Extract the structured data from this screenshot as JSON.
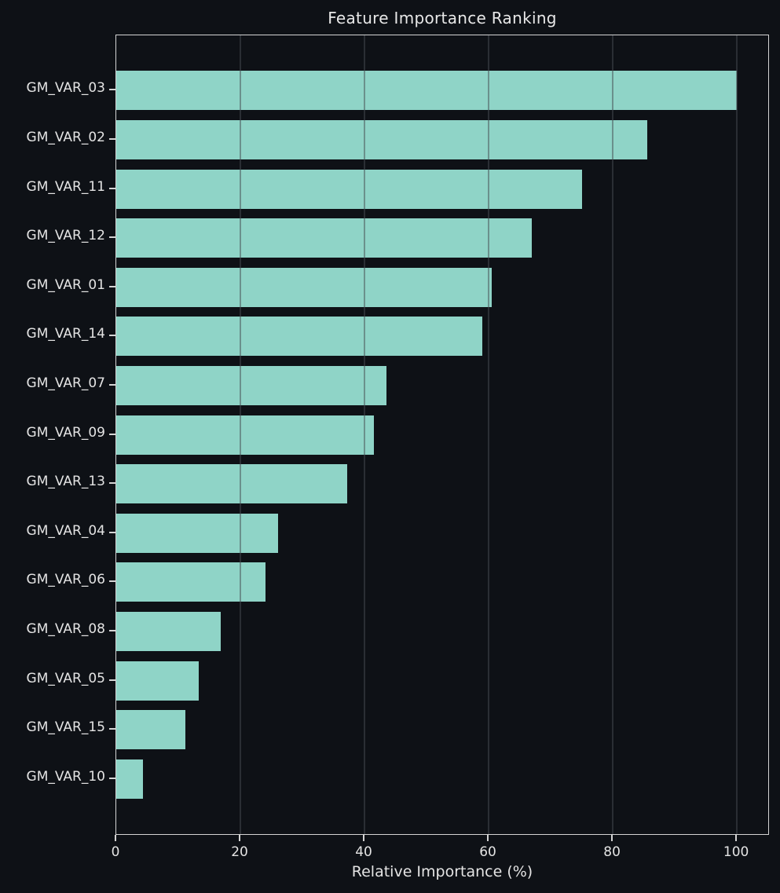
{
  "chart_data": {
    "type": "bar",
    "orientation": "horizontal",
    "title": "Feature Importance Ranking",
    "xlabel": "Relative Importance (%)",
    "ylabel": "",
    "categories": [
      "GM_VAR_03",
      "GM_VAR_02",
      "GM_VAR_11",
      "GM_VAR_12",
      "GM_VAR_01",
      "GM_VAR_14",
      "GM_VAR_07",
      "GM_VAR_09",
      "GM_VAR_13",
      "GM_VAR_04",
      "GM_VAR_06",
      "GM_VAR_08",
      "GM_VAR_05",
      "GM_VAR_15",
      "GM_VAR_10"
    ],
    "values": [
      100,
      85.5,
      75.0,
      66.9,
      60.5,
      59.0,
      43.6,
      41.5,
      37.2,
      26.1,
      24.0,
      16.8,
      13.3,
      11.2,
      4.3
    ],
    "xlim": [
      0,
      105.3
    ],
    "xticks": [
      0,
      20,
      40,
      60,
      80,
      100
    ],
    "grid": "vertical",
    "legend": "none",
    "bar_color": "#8fd4c7",
    "background_color": "#0e1116",
    "text_color": "#e4e4e4",
    "spine_color": "#d4d4d4",
    "grid_color": "#464c52"
  }
}
